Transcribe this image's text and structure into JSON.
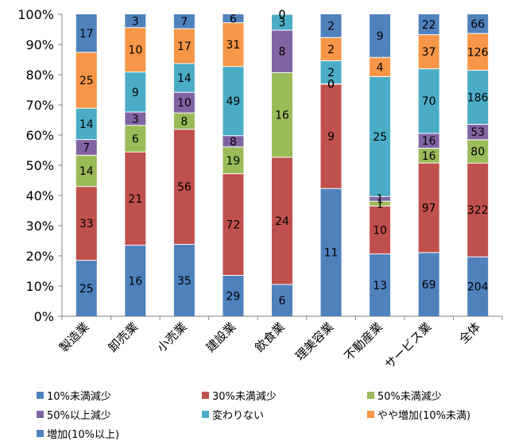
{
  "chart_data": {
    "type": "bar",
    "stacked": "percent",
    "categories": [
      "製造業",
      "卸売業",
      "小売業",
      "建設業",
      "飲食業",
      "理美容業",
      "不動産業",
      "サービス業",
      "全体"
    ],
    "yticks": [
      "0%",
      "10%",
      "20%",
      "30%",
      "40%",
      "50%",
      "60%",
      "70%",
      "80%",
      "90%",
      "100%"
    ],
    "ylim": [
      0,
      100
    ],
    "series": [
      {
        "name": "10%未満減少",
        "color": "#4F81BD",
        "values": [
          25,
          16,
          35,
          29,
          6,
          11,
          13,
          69,
          204
        ]
      },
      {
        "name": "30%未満減少",
        "color": "#C0504D",
        "values": [
          33,
          21,
          56,
          72,
          24,
          9,
          10,
          97,
          322
        ]
      },
      {
        "name": "50%未満減少",
        "color": "#9BBB59",
        "values": [
          14,
          6,
          8,
          19,
          16,
          0,
          1,
          16,
          80
        ]
      },
      {
        "name": "50%以上減少",
        "color": "#8064A2",
        "values": [
          7,
          3,
          10,
          8,
          8,
          0,
          1,
          16,
          53
        ]
      },
      {
        "name": "変わりない",
        "color": "#4BACC6",
        "values": [
          14,
          9,
          14,
          49,
          3,
          2,
          25,
          70,
          186
        ]
      },
      {
        "name": "やや増加(10%未満)",
        "color": "#F79646",
        "values": [
          25,
          10,
          17,
          31,
          0,
          2,
          4,
          37,
          126
        ]
      },
      {
        "name": "増加(10%以上)",
        "color": "#4F81BD",
        "values": [
          17,
          3,
          7,
          6,
          0,
          2,
          9,
          22,
          66
        ]
      }
    ],
    "legend_position": "bottom",
    "grid": false
  }
}
